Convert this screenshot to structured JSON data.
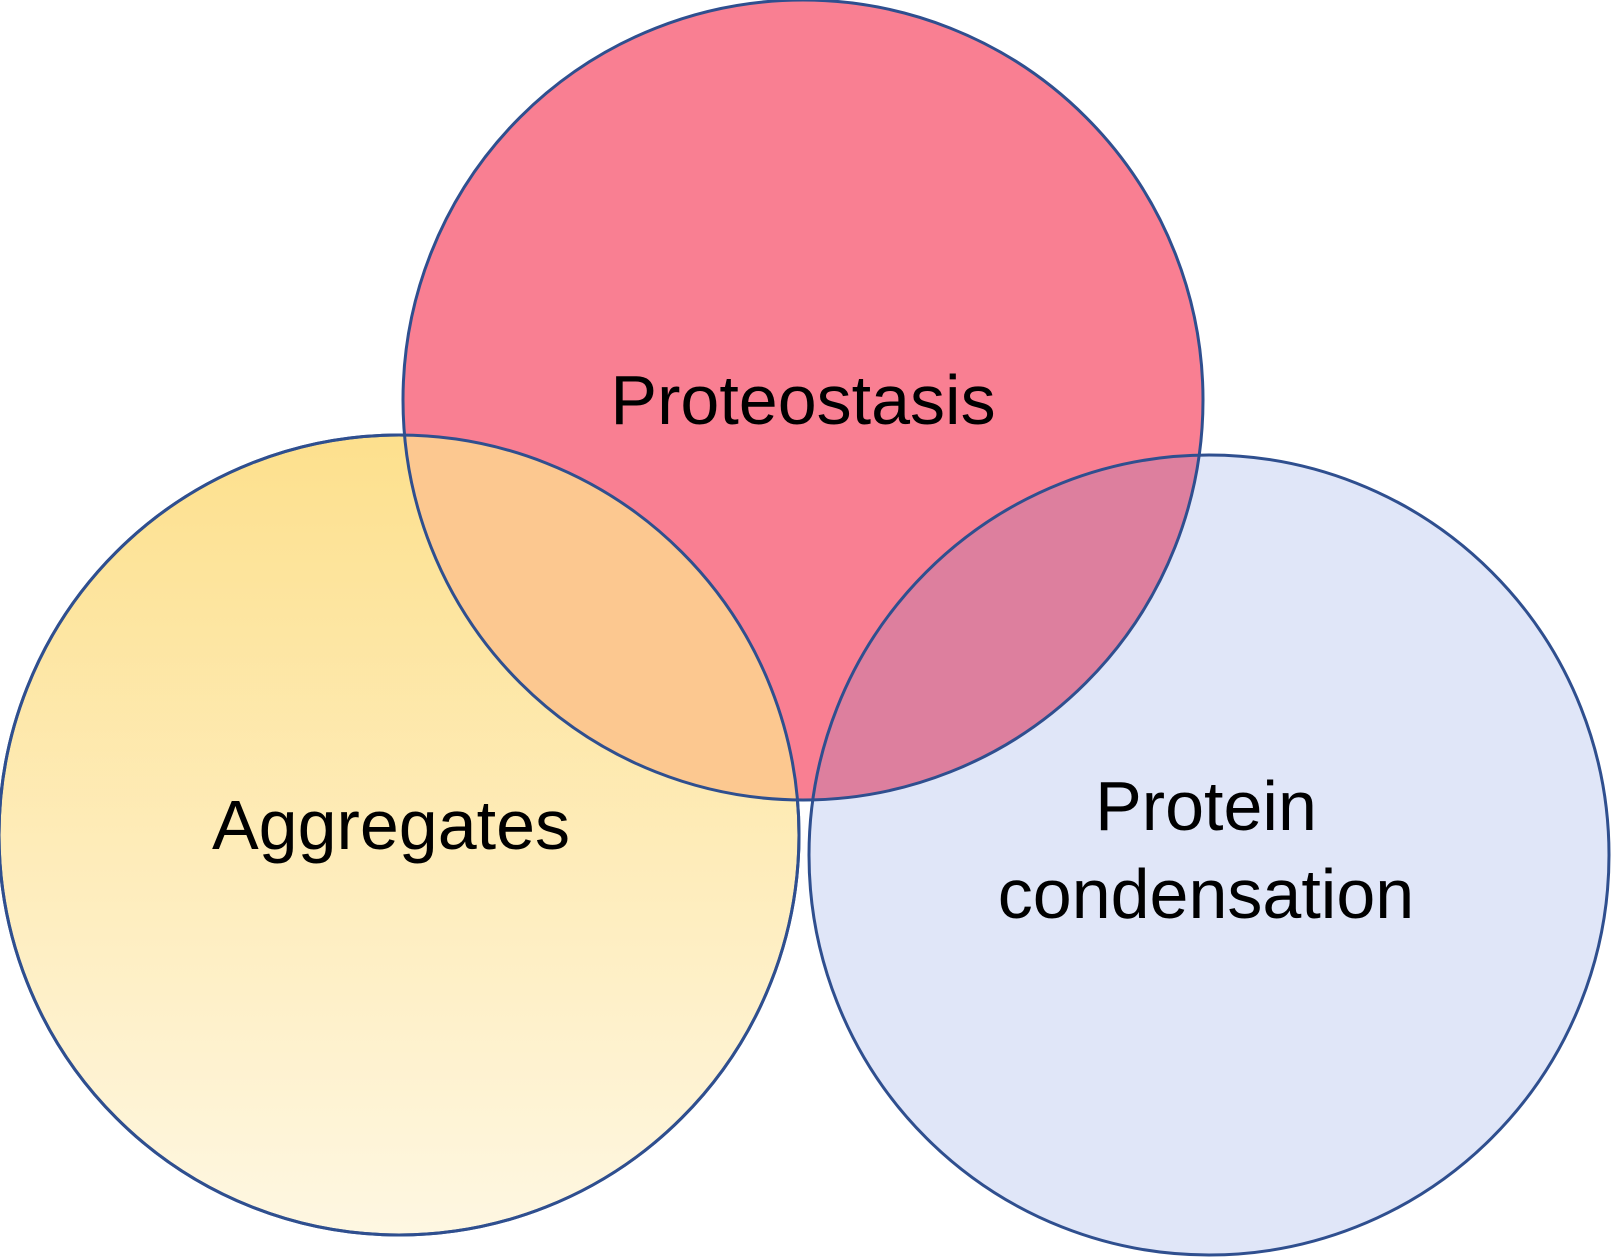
{
  "diagram": {
    "sets": [
      {
        "id": "proteostasis",
        "label_lines": [
          "Proteostasis"
        ],
        "fill": "#f97f92",
        "stroke": "#2f4f8f"
      },
      {
        "id": "aggregates",
        "label_lines": [
          "Aggregates"
        ],
        "fill_top": "#fde08d",
        "fill_bottom": "#fef7e2",
        "stroke": "#2f4f8f"
      },
      {
        "id": "protein-condensation",
        "label_lines": [
          "Protein",
          "condensation"
        ],
        "fill": "#e0e6f8",
        "stroke": "#2f4f8f"
      }
    ],
    "intersections": {
      "proteostasis_aggregates": "#fcc890",
      "proteostasis_condensation": "#dd7f9e"
    }
  }
}
